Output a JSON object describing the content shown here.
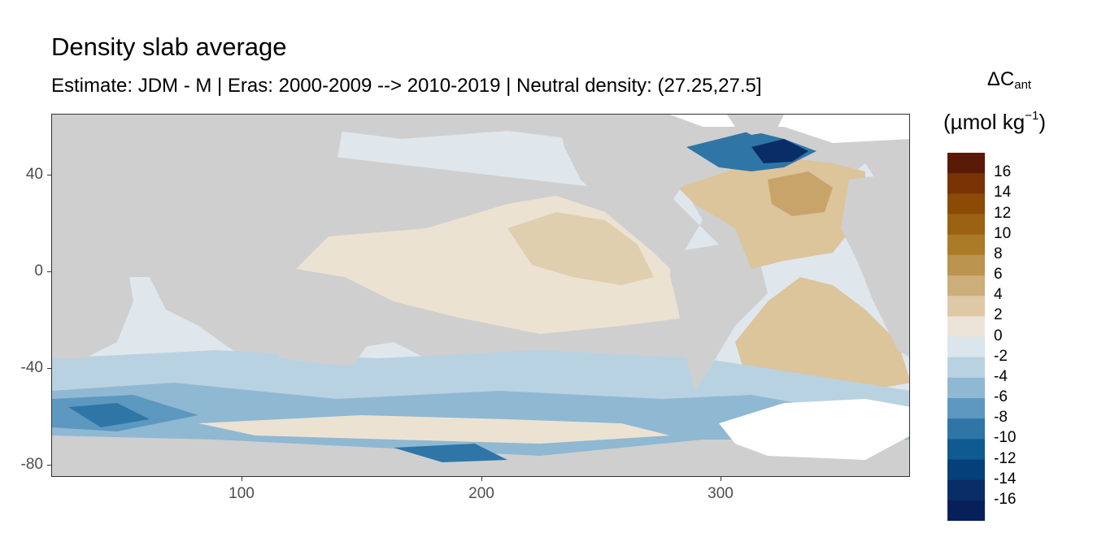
{
  "title": "Density slab average",
  "subtitle": "Estimate: JDM - M | Eras: 2000-2009 --> 2010-2019 | Neutral density: (27.25,27.5]",
  "legend": {
    "title_main": "ΔC",
    "title_sub": "ant",
    "unit_open": "(µmol kg",
    "unit_sup": "−1",
    "unit_close": ")",
    "labels": [
      "16",
      "14",
      "12",
      "10",
      "8",
      "6",
      "4",
      "2",
      "0",
      "-2",
      "-4",
      "-6",
      "-8",
      "-10",
      "-12",
      "-14",
      "-16"
    ],
    "colors": [
      "#5a1a08",
      "#7a3304",
      "#8c4a07",
      "#9b6213",
      "#ab7b27",
      "#bb9450",
      "#ccae7a",
      "#ddc9a5",
      "#ece4d8",
      "#dbe5ec",
      "#b9d2e1",
      "#8fb8d3",
      "#5d98c0",
      "#2f76a7",
      "#0f5a90",
      "#06407b",
      "#082d67",
      "#08205a"
    ]
  },
  "axes": {
    "y_ticks": [
      "40",
      "0",
      "-40",
      "-80"
    ],
    "x_ticks": [
      "100",
      "200",
      "300"
    ]
  },
  "colors": {
    "land": "#cfcfcf",
    "ocean_ice": "#ffffff"
  }
}
